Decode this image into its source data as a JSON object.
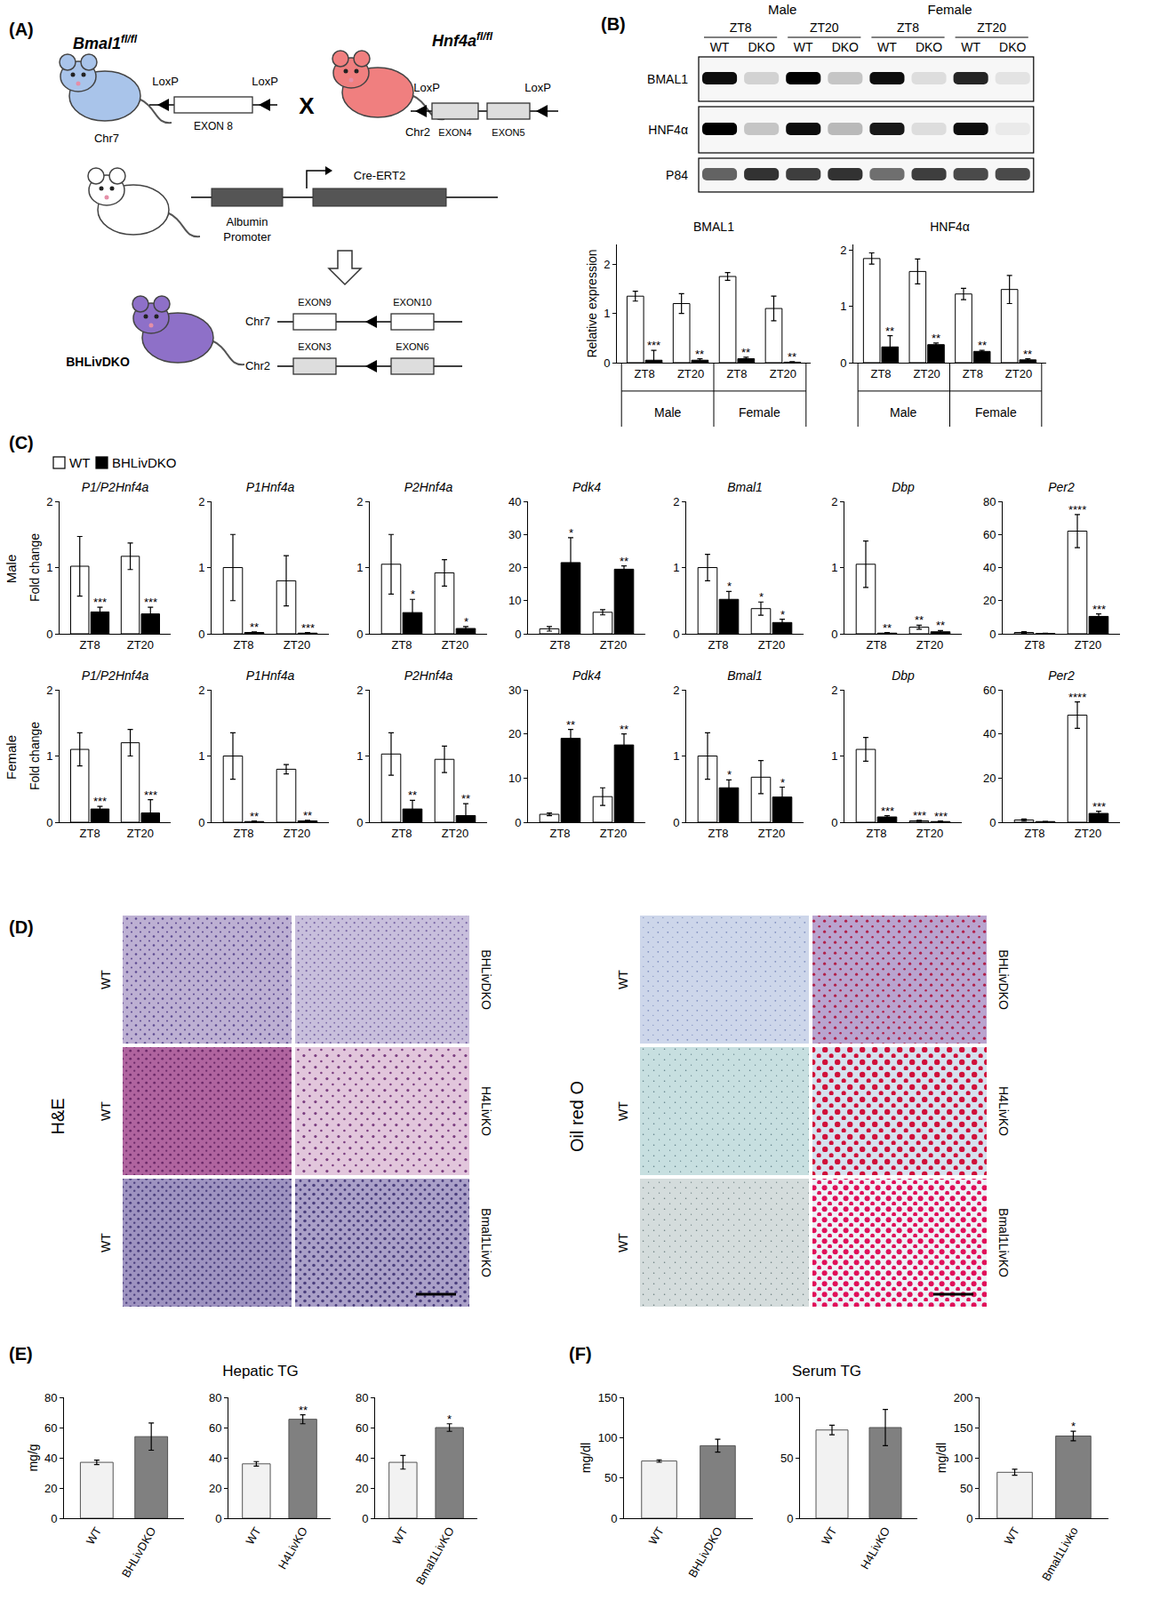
{
  "panel_labels": [
    "(A)",
    "(B)",
    "(C)",
    "(D)",
    "(E)",
    "(F)"
  ],
  "diagram": {
    "bmal1_mouse": "Bmal1",
    "bmal1_sup": "fl/fl",
    "hnf4a_mouse": "Hnf4a",
    "hnf4a_sup": "fl/fl",
    "loxp": "LoxP",
    "cross": "X",
    "bmal1_chr": "Chr7",
    "bmal1_exon": "EXON 8",
    "hnf4a_chr": "Chr2",
    "hnf4a_exons": [
      "EXON4",
      "EXON5"
    ],
    "cre_promoter": [
      "Albumin",
      "Promoter"
    ],
    "cre": "Cre-ERT2",
    "dko": "BHLivDKO",
    "dko_bmal1": {
      "chr": "Chr7",
      "exons": [
        "EXON9",
        "EXON10"
      ]
    },
    "dko_hnf4a": {
      "chr": "Chr2",
      "exons": [
        "EXON3",
        "EXON6"
      ]
    }
  },
  "blot": {
    "sexes": [
      "Male",
      "Female"
    ],
    "times": [
      "ZT8",
      "ZT20",
      "ZT8",
      "ZT20"
    ],
    "lanes": [
      "WT",
      "DKO",
      "WT",
      "DKO",
      "WT",
      "DKO",
      "WT",
      "DKO"
    ],
    "rows": [
      {
        "label": "BMAL1",
        "intensity": [
          0.95,
          0.15,
          1.0,
          0.2,
          0.95,
          0.1,
          0.85,
          0.08
        ]
      },
      {
        "label": "HNF4α",
        "intensity": [
          1.0,
          0.2,
          0.95,
          0.25,
          0.9,
          0.1,
          0.95,
          0.05
        ]
      },
      {
        "label": "P84",
        "intensity": [
          0.6,
          0.8,
          0.75,
          0.8,
          0.55,
          0.75,
          0.7,
          0.7
        ]
      }
    ]
  },
  "panel_C_rows": [
    "Male",
    "Female"
  ],
  "histology": {
    "stains": [
      "H&E",
      "Oil red O"
    ],
    "control": "WT",
    "genotypes": [
      "BHLivDKO",
      "H4LivKO",
      "Bmal1LivKO"
    ]
  },
  "panel_titles": {
    "E": "Hepatic TG",
    "F": "Serum TG"
  },
  "chart_data": [
    {
      "type": "bar",
      "title": "BMAL1",
      "y_label": "Relative expression",
      "categories": [
        "ZT8",
        "ZT20",
        "ZT8",
        "ZT20"
      ],
      "groups": [
        "Male",
        "Male",
        "Female",
        "Female"
      ],
      "ylim": [
        0,
        2.4
      ],
      "yticks": [
        0,
        1,
        2
      ],
      "series": [
        {
          "color": "#ffffff",
          "values": [
            1.35,
            1.2,
            1.75,
            1.1
          ],
          "errors": [
            0.1,
            0.2,
            0.08,
            0.25
          ],
          "significance": [
            null,
            null,
            null,
            null
          ]
        },
        {
          "color": "#000000",
          "values": [
            0.05,
            0.05,
            0.08,
            0.01
          ],
          "errors": [
            0.2,
            0.03,
            0.03,
            0.01
          ],
          "significance": [
            "***",
            "**",
            "**",
            "**"
          ]
        }
      ]
    },
    {
      "type": "bar",
      "title": "HNF4α",
      "categories": [
        "ZT8",
        "ZT20",
        "ZT8",
        "ZT20"
      ],
      "groups": [
        "Male",
        "Male",
        "Female",
        "Female"
      ],
      "ylim": [
        0,
        2.1
      ],
      "yticks": [
        0,
        1,
        2
      ],
      "series": [
        {
          "color": "#ffffff",
          "values": [
            1.85,
            1.62,
            1.22,
            1.3
          ],
          "errors": [
            0.1,
            0.22,
            0.1,
            0.25
          ],
          "significance": [
            null,
            null,
            null,
            null
          ]
        },
        {
          "color": "#000000",
          "values": [
            0.28,
            0.32,
            0.2,
            0.05
          ],
          "errors": [
            0.2,
            0.03,
            0.02,
            0.02
          ],
          "significance": [
            "**",
            "**",
            "**",
            "**"
          ]
        }
      ]
    },
    {
      "type": "bar",
      "title": "P1/P2Hnf4a",
      "y_label": "Fold change",
      "categories": [
        "ZT8",
        "ZT20"
      ],
      "ylim": [
        0,
        2
      ],
      "yticks": [
        0,
        1,
        2
      ],
      "series": [
        {
          "name": "WT",
          "color": "#ffffff",
          "values": [
            1.02,
            1.17
          ],
          "errors": [
            0.45,
            0.2
          ],
          "significance": [
            null,
            null
          ]
        },
        {
          "name": "BHLivDKO",
          "color": "#000000",
          "values": [
            0.33,
            0.3
          ],
          "errors": [
            0.07,
            0.1
          ],
          "significance": [
            "***",
            "***"
          ]
        }
      ]
    },
    {
      "type": "bar",
      "title": "P1Hnf4a",
      "categories": [
        "ZT8",
        "ZT20"
      ],
      "ylim": [
        0,
        2
      ],
      "yticks": [
        0,
        1,
        2
      ],
      "series": [
        {
          "name": "WT",
          "color": "#ffffff",
          "values": [
            1.0,
            0.8
          ],
          "errors": [
            0.5,
            0.38
          ],
          "significance": [
            null,
            null
          ]
        },
        {
          "name": "BHLivDKO",
          "color": "#000000",
          "values": [
            0.02,
            0.01
          ],
          "errors": [
            0.01,
            0.01
          ],
          "significance": [
            "**",
            "***"
          ]
        }
      ]
    },
    {
      "type": "bar",
      "title": "P2Hnf4a",
      "categories": [
        "ZT8",
        "ZT20"
      ],
      "ylim": [
        0,
        2
      ],
      "yticks": [
        0,
        1,
        2
      ],
      "series": [
        {
          "name": "WT",
          "color": "#ffffff",
          "values": [
            1.05,
            0.92
          ],
          "errors": [
            0.45,
            0.2
          ],
          "significance": [
            null,
            null
          ]
        },
        {
          "name": "BHLivDKO",
          "color": "#000000",
          "values": [
            0.32,
            0.08
          ],
          "errors": [
            0.2,
            0.03
          ],
          "significance": [
            "*",
            "*"
          ]
        }
      ]
    },
    {
      "type": "bar",
      "title": "Pdk4",
      "categories": [
        "ZT8",
        "ZT20"
      ],
      "ylim": [
        0,
        40
      ],
      "yticks": [
        0,
        10,
        20,
        30,
        40
      ],
      "series": [
        {
          "name": "WT",
          "color": "#ffffff",
          "values": [
            1.5,
            6.5
          ],
          "errors": [
            0.7,
            0.8
          ],
          "significance": [
            null,
            null
          ]
        },
        {
          "name": "BHLivDKO",
          "color": "#000000",
          "values": [
            21.5,
            19.5
          ],
          "errors": [
            7.5,
            1
          ],
          "significance": [
            "*",
            "**"
          ]
        }
      ]
    },
    {
      "type": "bar",
      "title": "Bmal1",
      "categories": [
        "ZT8",
        "ZT20"
      ],
      "ylim": [
        0,
        2
      ],
      "yticks": [
        0,
        1,
        2
      ],
      "series": [
        {
          "name": "WT",
          "color": "#ffffff",
          "values": [
            1.0,
            0.38
          ],
          "errors": [
            0.2,
            0.1
          ],
          "significance": [
            null,
            "*"
          ]
        },
        {
          "name": "BHLivDKO",
          "color": "#000000",
          "values": [
            0.52,
            0.17
          ],
          "errors": [
            0.12,
            0.05
          ],
          "significance": [
            "*",
            "*"
          ]
        }
      ]
    },
    {
      "type": "bar",
      "title": "Dbp",
      "categories": [
        "ZT8",
        "ZT20"
      ],
      "ylim": [
        0,
        2
      ],
      "yticks": [
        0,
        1,
        2
      ],
      "series": [
        {
          "name": "WT",
          "color": "#ffffff",
          "values": [
            1.05,
            0.1
          ],
          "errors": [
            0.35,
            0.03
          ],
          "significance": [
            null,
            "**"
          ]
        },
        {
          "name": "BHLivDKO",
          "color": "#000000",
          "values": [
            0.01,
            0.03
          ],
          "errors": [
            0.01,
            0.02
          ],
          "significance": [
            "**",
            "**"
          ]
        }
      ]
    },
    {
      "type": "bar",
      "title": "Per2",
      "categories": [
        "ZT8",
        "ZT20"
      ],
      "ylim": [
        0,
        80
      ],
      "yticks": [
        0,
        20,
        40,
        60,
        80
      ],
      "series": [
        {
          "name": "WT",
          "color": "#ffffff",
          "values": [
            0.8,
            62
          ],
          "errors": [
            0.5,
            10
          ],
          "significance": [
            null,
            "****"
          ]
        },
        {
          "name": "BHLivDKO",
          "color": "#000000",
          "values": [
            0.2,
            10.5
          ],
          "errors": [
            0.1,
            1.5
          ],
          "significance": [
            null,
            "***"
          ]
        }
      ]
    },
    {
      "type": "bar",
      "title": "P1/P2Hnf4a",
      "y_label": "Fold change",
      "categories": [
        "ZT8",
        "ZT20"
      ],
      "ylim": [
        0,
        2
      ],
      "yticks": [
        0,
        1,
        2
      ],
      "series": [
        {
          "name": "WT",
          "color": "#ffffff",
          "values": [
            1.1,
            1.2
          ],
          "errors": [
            0.25,
            0.2
          ],
          "significance": [
            null,
            null
          ]
        },
        {
          "name": "BHLivDKO",
          "color": "#000000",
          "values": [
            0.2,
            0.14
          ],
          "errors": [
            0.04,
            0.2
          ],
          "significance": [
            "***",
            "***"
          ]
        }
      ]
    },
    {
      "type": "bar",
      "title": "P1Hnf4a",
      "categories": [
        "ZT8",
        "ZT20"
      ],
      "ylim": [
        0,
        2
      ],
      "yticks": [
        0,
        1,
        2
      ],
      "series": [
        {
          "name": "WT",
          "color": "#ffffff",
          "values": [
            1.0,
            0.8
          ],
          "errors": [
            0.35,
            0.07
          ],
          "significance": [
            null,
            null
          ]
        },
        {
          "name": "BHLivDKO",
          "color": "#000000",
          "values": [
            0.01,
            0.02
          ],
          "errors": [
            0.01,
            0.01
          ],
          "significance": [
            "**",
            "**"
          ]
        }
      ]
    },
    {
      "type": "bar",
      "title": "P2Hnf4a",
      "categories": [
        "ZT8",
        "ZT20"
      ],
      "ylim": [
        0,
        2
      ],
      "yticks": [
        0,
        1,
        2
      ],
      "series": [
        {
          "name": "WT",
          "color": "#ffffff",
          "values": [
            1.03,
            0.95
          ],
          "errors": [
            0.32,
            0.2
          ],
          "significance": [
            null,
            null
          ]
        },
        {
          "name": "BHLivDKO",
          "color": "#000000",
          "values": [
            0.2,
            0.1
          ],
          "errors": [
            0.13,
            0.18
          ],
          "significance": [
            "**",
            "**"
          ]
        }
      ]
    },
    {
      "type": "bar",
      "title": "Pdk4",
      "categories": [
        "ZT8",
        "ZT20"
      ],
      "ylim": [
        0,
        30
      ],
      "yticks": [
        0,
        10,
        20,
        30
      ],
      "series": [
        {
          "name": "WT",
          "color": "#ffffff",
          "values": [
            1.8,
            5.8
          ],
          "errors": [
            0.3,
            2
          ],
          "significance": [
            null,
            null
          ]
        },
        {
          "name": "BHLivDKO",
          "color": "#000000",
          "values": [
            19,
            17.5
          ],
          "errors": [
            2,
            2.5
          ],
          "significance": [
            "**",
            "**"
          ]
        }
      ]
    },
    {
      "type": "bar",
      "title": "Bmal1",
      "categories": [
        "ZT8",
        "ZT20"
      ],
      "ylim": [
        0,
        2
      ],
      "yticks": [
        0,
        1,
        2
      ],
      "series": [
        {
          "name": "WT",
          "color": "#ffffff",
          "values": [
            1.0,
            0.68
          ],
          "errors": [
            0.35,
            0.25
          ],
          "significance": [
            null,
            null
          ]
        },
        {
          "name": "BHLivDKO",
          "color": "#000000",
          "values": [
            0.52,
            0.38
          ],
          "errors": [
            0.12,
            0.15
          ],
          "significance": [
            "*",
            "*"
          ]
        }
      ]
    },
    {
      "type": "bar",
      "title": "Dbp",
      "categories": [
        "ZT8",
        "ZT20"
      ],
      "ylim": [
        0,
        2
      ],
      "yticks": [
        0,
        1,
        2
      ],
      "series": [
        {
          "name": "WT",
          "color": "#ffffff",
          "values": [
            1.1,
            0.02
          ],
          "errors": [
            0.18,
            0.01
          ],
          "significance": [
            null,
            "***"
          ]
        },
        {
          "name": "BHLivDKO",
          "color": "#000000",
          "values": [
            0.08,
            0.01
          ],
          "errors": [
            0.02,
            0.01
          ],
          "significance": [
            "***",
            "***"
          ]
        }
      ]
    },
    {
      "type": "bar",
      "title": "Per2",
      "categories": [
        "ZT8",
        "ZT20"
      ],
      "ylim": [
        0,
        60
      ],
      "yticks": [
        0,
        20,
        40,
        60
      ],
      "series": [
        {
          "name": "WT",
          "color": "#ffffff",
          "values": [
            1.0,
            48.5
          ],
          "errors": [
            0.5,
            6
          ],
          "significance": [
            null,
            "****"
          ]
        },
        {
          "name": "BHLivDKO",
          "color": "#000000",
          "values": [
            0.3,
            4
          ],
          "errors": [
            0.1,
            1
          ],
          "significance": [
            null,
            "***"
          ]
        }
      ]
    },
    {
      "type": "bar",
      "y_label": "mg/g",
      "categories": [
        "WT",
        "BHLivDKO"
      ],
      "colors": [
        "#f2f2f2",
        "#808080"
      ],
      "values": [
        37,
        54
      ],
      "errors": [
        1.5,
        9
      ],
      "significance": [
        null,
        null
      ],
      "ylim": [
        0,
        80
      ],
      "yticks": [
        0,
        20,
        40,
        60,
        80
      ]
    },
    {
      "type": "bar",
      "categories": [
        "WT",
        "H4LivKO"
      ],
      "colors": [
        "#f2f2f2",
        "#808080"
      ],
      "values": [
        36,
        65.5
      ],
      "errors": [
        1.5,
        3
      ],
      "significance": [
        null,
        "**"
      ],
      "ylim": [
        0,
        80
      ],
      "yticks": [
        0,
        20,
        40,
        60,
        80
      ]
    },
    {
      "type": "bar",
      "categories": [
        "WT",
        "Bmal1LivKO"
      ],
      "colors": [
        "#f2f2f2",
        "#808080"
      ],
      "values": [
        37,
        60
      ],
      "errors": [
        4.5,
        2.5
      ],
      "significance": [
        null,
        "*"
      ],
      "ylim": [
        0,
        80
      ],
      "yticks": [
        0,
        20,
        40,
        60,
        80
      ]
    },
    {
      "type": "bar",
      "y_label": "mg/dl",
      "categories": [
        "WT",
        "BHLivDKO"
      ],
      "colors": [
        "#f2f2f2",
        "#808080"
      ],
      "values": [
        71,
        90
      ],
      "errors": [
        1.5,
        8
      ],
      "significance": [
        null,
        null
      ],
      "ylim": [
        0,
        150
      ],
      "yticks": [
        0,
        50,
        100,
        150
      ]
    },
    {
      "type": "bar",
      "categories": [
        "WT",
        "H4LivKO"
      ],
      "colors": [
        "#f2f2f2",
        "#808080"
      ],
      "values": [
        73,
        75
      ],
      "errors": [
        4,
        15
      ],
      "significance": [
        null,
        null
      ],
      "ylim": [
        0,
        100
      ],
      "yticks": [
        0,
        50,
        100
      ]
    },
    {
      "type": "bar",
      "y_label": "mg/dl",
      "categories": [
        "WT",
        "Bmal1Livko"
      ],
      "colors": [
        "#f2f2f2",
        "#808080"
      ],
      "values": [
        76,
        136
      ],
      "errors": [
        5,
        8
      ],
      "significance": [
        null,
        "*"
      ],
      "ylim": [
        0,
        200
      ],
      "yticks": [
        0,
        50,
        100,
        150,
        200
      ]
    }
  ]
}
